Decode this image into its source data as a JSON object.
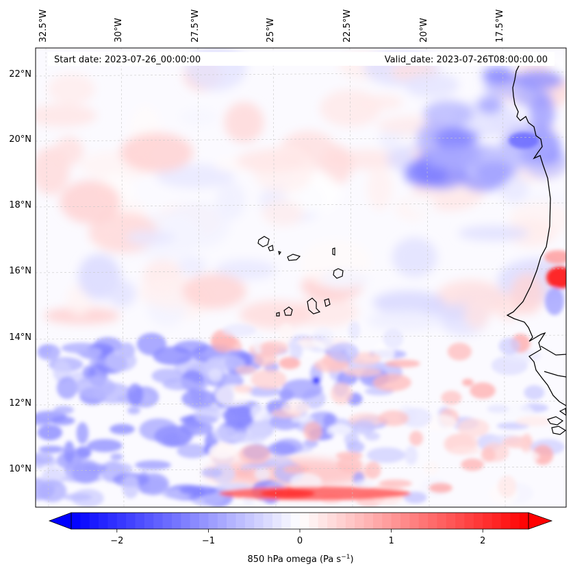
{
  "map": {
    "start_date": "Start date: 2023-07-26_00:00:00",
    "valid_date": "Valid_date: 2023-07-26T08:00:00.00",
    "lon_labels": [
      "32.5°W",
      "30°W",
      "27.5°W",
      "25°W",
      "22.5°W",
      "20°W",
      "17.5°W"
    ],
    "lat_labels": [
      "22°N",
      "20°N",
      "18°N",
      "16°N",
      "14°N",
      "12°N",
      "10°N"
    ],
    "variable": "850 hPa omega",
    "units": "Pa s",
    "units_exp": "−1",
    "colormap": "bwr",
    "range_min": -2.5,
    "range_max": 2.5,
    "colors": {
      "negative": "#0000ff",
      "neutral": "#ffffff",
      "positive": "#ff0000",
      "coast": "#000000",
      "grid": "#c8c8c8"
    }
  },
  "colorbar": {
    "ticks": [
      {
        "value": -2,
        "label": "−2"
      },
      {
        "value": -1,
        "label": "−1"
      },
      {
        "value": 0,
        "label": "0"
      },
      {
        "value": 1,
        "label": "1"
      },
      {
        "value": 2,
        "label": "2"
      }
    ]
  }
}
